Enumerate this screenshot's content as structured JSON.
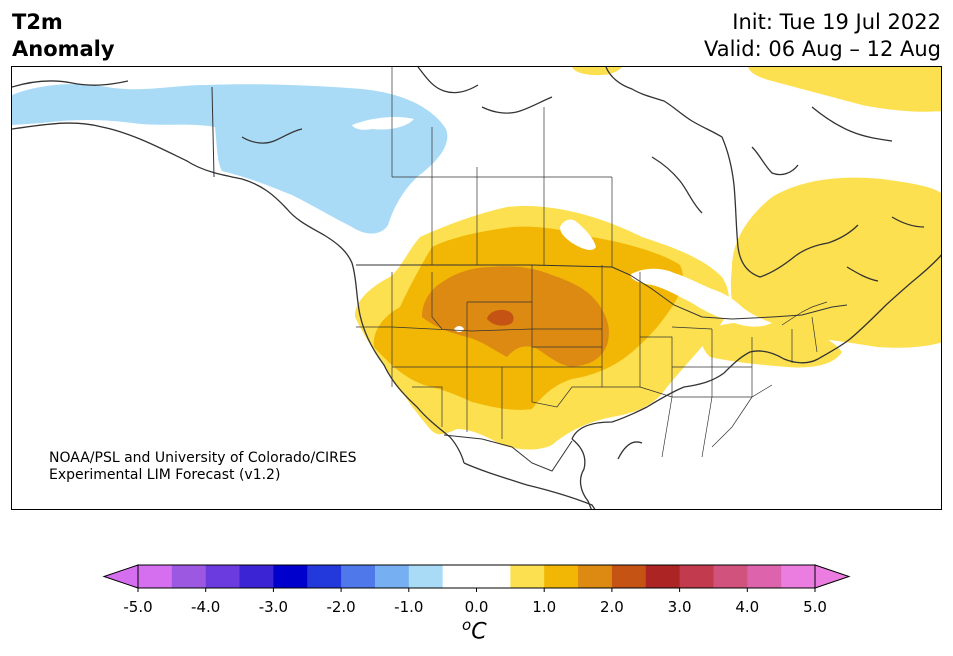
{
  "header": {
    "title_line1": "T2m",
    "title_line2": "Anomaly",
    "init": "Init: Tue 19 Jul 2022",
    "valid": "Valid: 06 Aug – 12 Aug"
  },
  "map": {
    "region": "North America",
    "layers": [
      "coastlines",
      "country-borders",
      "state-province-borders",
      "temperature-anomaly-fill"
    ],
    "anomaly_regions": [
      {
        "name": "western-canada-cool",
        "level": "-1.0 to -0.5",
        "color": "#a9dbf7"
      },
      {
        "name": "central-us-warm",
        "level": "0.5 to 1.0",
        "color": "#fde04f"
      },
      {
        "name": "central-plains-warm",
        "level": "1.0 to 1.5",
        "color": "#f2b705"
      },
      {
        "name": "wyoming-nebraska-warm",
        "level": "1.5 to 2.0",
        "color": "#dd8a12"
      },
      {
        "name": "wyoming-core",
        "level": "2.0 to 2.5",
        "color": "#c55313"
      },
      {
        "name": "quebec-warm",
        "level": "0.5 to 1.0",
        "color": "#fde04f"
      },
      {
        "name": "arctic-warm",
        "level": "0.5 to 1.0",
        "color": "#fde04f"
      }
    ]
  },
  "credit": {
    "line1": "NOAA/PSL and University of Colorado/CIRES",
    "line2": "Experimental LIM Forecast (v1.2)"
  },
  "colorbar": {
    "colors": [
      "#d56ff0",
      "#9d58e2",
      "#6b3be0",
      "#3b24d4",
      "#0000cd",
      "#2339dc",
      "#4f78ea",
      "#77aff3",
      "#a9dbf7",
      "#ffffff",
      "#ffffff",
      "#fde04f",
      "#f2b705",
      "#dd8a12",
      "#c55313",
      "#ad2424",
      "#c23a4d",
      "#d1527c",
      "#dc63ac",
      "#eb7de0"
    ],
    "ticks": [
      "-5.0",
      "-4.0",
      "-3.0",
      "-2.0",
      "-1.0",
      "0.0",
      "1.0",
      "2.0",
      "3.0",
      "4.0",
      "5.0"
    ],
    "unit_base": "C",
    "unit_sup": "o"
  }
}
